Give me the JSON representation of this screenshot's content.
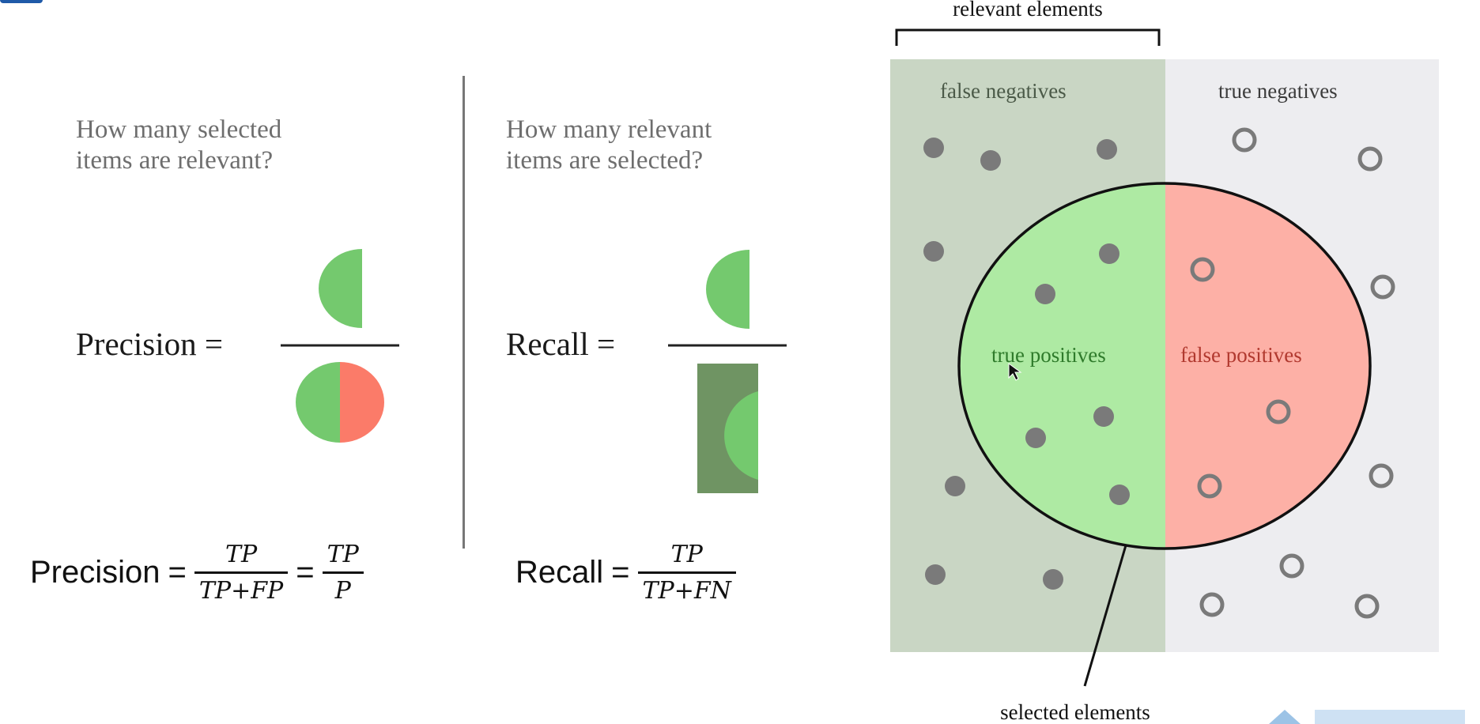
{
  "precision_panel": {
    "question": "How many selected\nitems are relevant?",
    "label": "Precision =",
    "formula_label": "Precision",
    "formula_frac1": {
      "num": "TP",
      "den": "TP+FP"
    },
    "formula_frac2": {
      "num": "TP",
      "den": "P"
    }
  },
  "recall_panel": {
    "question": "How many relevant\nitems are selected?",
    "label": "Recall =",
    "formula_label": "Recall",
    "formula_frac": {
      "num": "TP",
      "den": "TP+FN"
    }
  },
  "diagram": {
    "top_label": "relevant elements",
    "bottom_label": "selected elements",
    "false_negatives": "false negatives",
    "true_negatives": "true negatives",
    "true_positives": "true positives",
    "false_positives": "false positives"
  },
  "colors": {
    "relevant_bg": "#c9d6c4",
    "irrelevant_bg": "#ededf0",
    "true_positive_fill": "#aeeaa3",
    "false_positive_fill": "#fdb0a6",
    "green_half": "#74c96e",
    "red_half": "#fb7b69",
    "dark_green_rect": "#6f9463",
    "dot": "#7a7a7a"
  }
}
